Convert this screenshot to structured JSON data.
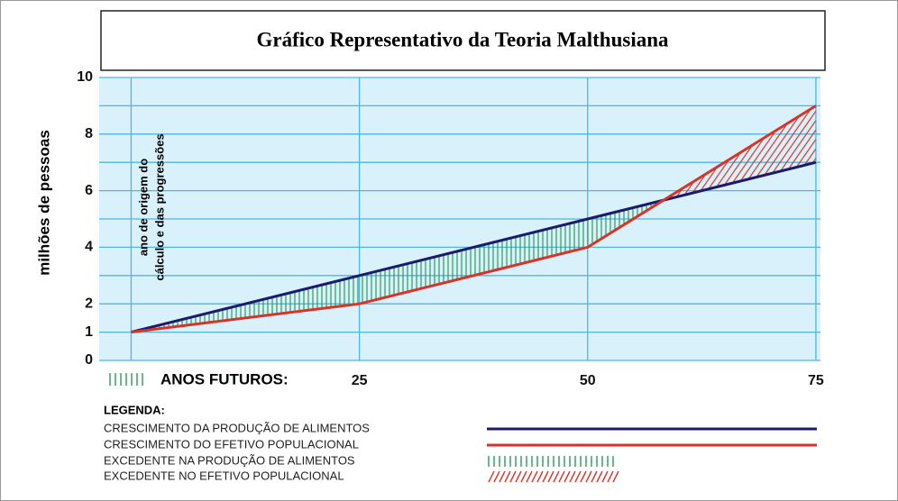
{
  "chart_data": {
    "type": "line",
    "title": "Gráfico Representativo da Teoria Malthusiana",
    "y_label": "milhões de pessoas",
    "x_label": "ANOS FUTUROS:",
    "annotation": [
      "ano de origem do",
      "cálculo e das progressões"
    ],
    "x": [
      0,
      25,
      50,
      75
    ],
    "xlim": [
      -3.5,
      75.5
    ],
    "xticks": [
      25,
      50,
      75
    ],
    "xgrid": [
      0,
      25,
      50,
      75
    ],
    "ylim": [
      0,
      10
    ],
    "yticks": [
      0,
      1,
      2,
      4,
      6,
      8,
      10
    ],
    "ygrid": [
      0,
      1,
      2,
      3,
      4,
      5,
      6,
      7,
      8,
      9,
      10
    ],
    "grid": true,
    "legend_title": "LEGENDA:",
    "series": [
      {
        "name": "CRESCIMENTO DA PRODUÇÃO DE ALIMENTOS",
        "color": "#1b1b6b",
        "values": [
          1,
          3,
          5,
          7
        ]
      },
      {
        "name": "CRESCIMENTO DO EFETIVO POPULACIONAL",
        "color": "#d93328",
        "values": [
          1,
          2,
          4,
          9
        ]
      }
    ],
    "surplus": [
      {
        "name": "EXCEDENTE NA PRODUÇÃO DE ALIMENTOS",
        "color": "#2e9a5a"
      },
      {
        "name": "EXCEDENTE NO EFETIVO POPULACIONAL",
        "color": "#d93328"
      }
    ]
  }
}
